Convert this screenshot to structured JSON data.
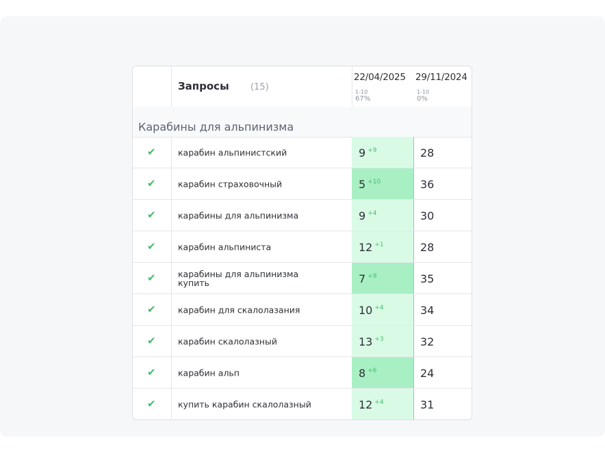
{
  "header": {
    "title": "Запросы",
    "count": "(15)",
    "dates": [
      {
        "date": "22/04/2025",
        "range": "1-10",
        "percent": "67%"
      },
      {
        "date": "29/11/2024",
        "range": "1-10",
        "percent": "0%"
      }
    ]
  },
  "group": {
    "label": "Карабины для альпинизма"
  },
  "rows": [
    {
      "query": "карабин альпинистский",
      "pos1": "9",
      "delta": "+9",
      "pos2": "28",
      "shade": "light"
    },
    {
      "query": "карабин страховочный",
      "pos1": "5",
      "delta": "+10",
      "pos2": "36",
      "shade": "mid"
    },
    {
      "query": "карабины для альпинизма",
      "pos1": "9",
      "delta": "+4",
      "pos2": "30",
      "shade": "light"
    },
    {
      "query": "карабин альпиниста",
      "pos1": "12",
      "delta": "+1",
      "pos2": "28",
      "shade": "light"
    },
    {
      "query": "карабины для альпинизма купить",
      "pos1": "7",
      "delta": "+9",
      "pos2": "35",
      "shade": "mid"
    },
    {
      "query": "карабин для скалолазания",
      "pos1": "10",
      "delta": "+4",
      "pos2": "34",
      "shade": "light"
    },
    {
      "query": "карабин скалолазный",
      "pos1": "13",
      "delta": "+3",
      "pos2": "32",
      "shade": "light"
    },
    {
      "query": "карабин альп",
      "pos1": "8",
      "delta": "+6",
      "pos2": "24",
      "shade": "mid"
    },
    {
      "query": "купить карабин скалолазный",
      "pos1": "12",
      "delta": "+4",
      "pos2": "31",
      "shade": "light"
    }
  ],
  "icons": {
    "row_check": "checkmark-icon"
  },
  "colors": {
    "check": "#3fbf6a",
    "cell_light": "#d9fbe6",
    "cell_mid": "#a8f0c3"
  }
}
